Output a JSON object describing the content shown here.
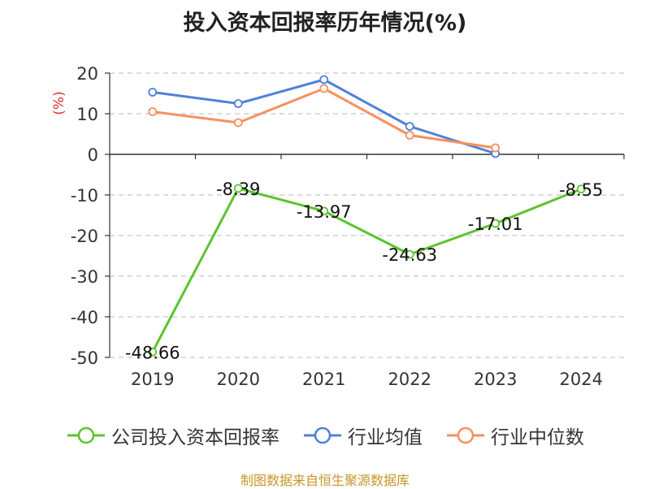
{
  "title": "投入资本回报率历年情况(%)",
  "source": "制图数据来自恒生聚源数据库",
  "chart_data": {
    "type": "line",
    "title": "投入资本回报率历年情况(%)",
    "ylabel": "(%)",
    "categories": [
      "2019",
      "2020",
      "2021",
      "2022",
      "2023",
      "2024"
    ],
    "ylim": [
      -50,
      20
    ],
    "yticks": [
      20,
      10,
      0,
      -10,
      -20,
      -30,
      -40,
      -50
    ],
    "grid": true,
    "legend_position": "bottom",
    "series": [
      {
        "name": "公司投入资本回报率",
        "color": "#5cc42f",
        "values": [
          -48.66,
          -8.39,
          -13.97,
          -24.63,
          -17.01,
          -8.55
        ],
        "labels": [
          "-48.66",
          "-8.39",
          "-13.97",
          "-24.63",
          "-17.01",
          "-8.55"
        ]
      },
      {
        "name": "行业均值",
        "color": "#4f81d9",
        "values": [
          15.3,
          12.5,
          18.4,
          6.9,
          0.2,
          null
        ]
      },
      {
        "name": "行业中位数",
        "color": "#f79060",
        "values": [
          10.5,
          7.8,
          16.2,
          4.7,
          1.6,
          null
        ]
      }
    ]
  }
}
